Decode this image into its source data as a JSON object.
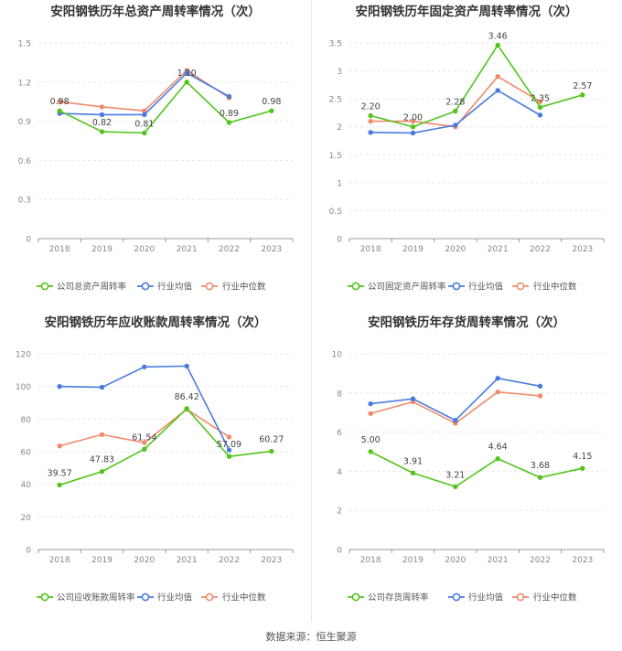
{
  "footer": "数据来源：恒生聚源",
  "colors": {
    "company": "#52c41a",
    "avg": "#4a7be0",
    "median": "#f08a6a",
    "grid": "#e6e6e6",
    "axis": "#999999",
    "text": "#888888",
    "title": "#333333"
  },
  "chart_data": [
    {
      "type": "line",
      "title": "安阳钢铁历年总资产周转率情况（次）",
      "categories": [
        "2018",
        "2019",
        "2020",
        "2021",
        "2022",
        "2023"
      ],
      "y_ticks": [
        "0",
        "0.3",
        "0.6",
        "0.9",
        "1.2",
        "1.5"
      ],
      "ylim": [
        0,
        1.5
      ],
      "legend_placement": "bottom",
      "series": [
        {
          "name": "公司总资产周转率",
          "key": "company",
          "values": [
            0.98,
            0.82,
            0.81,
            1.2,
            0.89,
            0.98
          ],
          "labels": [
            "0.98",
            "0.82",
            "0.81",
            "1.20",
            "0.89",
            "0.98"
          ]
        },
        {
          "name": "行业均值",
          "key": "avg",
          "values": [
            0.96,
            0.95,
            0.95,
            1.27,
            1.09,
            null
          ]
        },
        {
          "name": "行业中位数",
          "key": "median",
          "values": [
            1.05,
            1.01,
            0.98,
            1.29,
            1.08,
            null
          ]
        }
      ]
    },
    {
      "type": "line",
      "title": "安阳钢铁历年固定资产周转率情况（次）",
      "categories": [
        "2018",
        "2019",
        "2020",
        "2021",
        "2022",
        "2023"
      ],
      "y_ticks": [
        "0",
        "0.5",
        "1",
        "1.5",
        "2",
        "2.5",
        "3",
        "3.5"
      ],
      "ylim": [
        0,
        3.5
      ],
      "legend_placement": "bottom",
      "series": [
        {
          "name": "公司固定资产周转率",
          "key": "company",
          "values": [
            2.2,
            2.0,
            2.28,
            3.46,
            2.35,
            2.57
          ],
          "labels": [
            "2.20",
            "2.00",
            "2.28",
            "3.46",
            "2.35",
            "2.57"
          ]
        },
        {
          "name": "行业均值",
          "key": "avg",
          "values": [
            1.9,
            1.89,
            2.03,
            2.65,
            2.21,
            null
          ]
        },
        {
          "name": "行业中位数",
          "key": "median",
          "values": [
            2.1,
            2.1,
            2.0,
            2.9,
            2.45,
            null
          ]
        }
      ]
    },
    {
      "type": "line",
      "title": "安阳钢铁历年应收账款周转率情况（次）",
      "categories": [
        "2018",
        "2019",
        "2020",
        "2021",
        "2022",
        "2023"
      ],
      "y_ticks": [
        "0",
        "20",
        "40",
        "60",
        "80",
        "100",
        "120"
      ],
      "ylim": [
        0,
        120
      ],
      "legend_placement": "bottom",
      "series": [
        {
          "name": "公司应收账款周转率",
          "key": "company",
          "values": [
            39.57,
            47.83,
            61.54,
            86.42,
            57.09,
            60.27
          ],
          "labels": [
            "39.57",
            "47.83",
            "61.54",
            "86.42",
            "57.09",
            "60.27"
          ]
        },
        {
          "name": "行业均值",
          "key": "avg",
          "values": [
            100.0,
            99.5,
            112.0,
            112.5,
            61.0,
            null
          ]
        },
        {
          "name": "行业中位数",
          "key": "median",
          "values": [
            63.5,
            70.5,
            65.5,
            86.0,
            69.0,
            null
          ]
        }
      ]
    },
    {
      "type": "line",
      "title": "安阳钢铁历年存货周转率情况（次）",
      "categories": [
        "2018",
        "2019",
        "2020",
        "2021",
        "2022",
        "2023"
      ],
      "y_ticks": [
        "0",
        "2",
        "4",
        "6",
        "8",
        "10"
      ],
      "ylim": [
        0,
        10
      ],
      "legend_placement": "bottom",
      "series": [
        {
          "name": "公司存货周转率",
          "key": "company",
          "values": [
            5.0,
            3.91,
            3.21,
            4.64,
            3.68,
            4.15
          ],
          "labels": [
            "5.00",
            "3.91",
            "3.21",
            "4.64",
            "3.68",
            "4.15"
          ]
        },
        {
          "name": "行业均值",
          "key": "avg",
          "values": [
            7.45,
            7.7,
            6.6,
            8.75,
            8.35,
            null
          ]
        },
        {
          "name": "行业中位数",
          "key": "median",
          "values": [
            6.95,
            7.55,
            6.45,
            8.05,
            7.85,
            null
          ]
        }
      ]
    }
  ]
}
